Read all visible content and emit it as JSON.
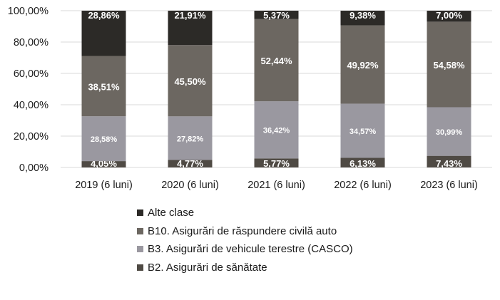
{
  "chart_data": {
    "type": "bar",
    "stacked": true,
    "categories": [
      "2019 (6 luni)",
      "2020 (6 luni)",
      "2021 (6 luni)",
      "2022 (6 luni)",
      "2023 (6 luni)"
    ],
    "series": [
      {
        "name": "B2. Asigurări de sănătate",
        "color": "#4f4a44",
        "values": [
          4.05,
          4.77,
          5.77,
          6.13,
          7.43
        ],
        "labels": [
          "4,05%",
          "4,77%",
          "5,77%",
          "6,13%",
          "7,43%"
        ]
      },
      {
        "name": "B3. Asigurări de vehicule terestre (CASCO)",
        "color": "#9a98a0",
        "values": [
          28.58,
          27.82,
          36.42,
          34.57,
          30.99
        ],
        "labels": [
          "28,58%",
          "27,82%",
          "36,42%",
          "34,57%",
          "30,99%"
        ]
      },
      {
        "name": "B10. Asigurări de răspundere civilă auto",
        "color": "#6c6761",
        "values": [
          38.51,
          45.5,
          52.44,
          49.92,
          54.58
        ],
        "labels": [
          "38,51%",
          "45,50%",
          "52,44%",
          "49,92%",
          "54,58%"
        ]
      },
      {
        "name": "Alte clase",
        "color": "#2c2a27",
        "values": [
          28.86,
          21.91,
          5.37,
          9.38,
          7.0
        ],
        "labels": [
          "28,86%",
          "21,91%",
          "5,37%",
          "9,38%",
          "7,00%"
        ]
      }
    ],
    "ylim": [
      0,
      100
    ],
    "yticks": [
      "0,00%",
      "20,00%",
      "40,00%",
      "60,00%",
      "80,00%",
      "100,00%"
    ],
    "legend_order": [
      "Alte clase",
      "B10. Asigurări de răspundere civilă auto",
      "B3. Asigurări de vehicule terestre (CASCO)",
      "B2. Asigurări de sănătate"
    ],
    "legend_position": "bottom",
    "gridlines": true
  }
}
